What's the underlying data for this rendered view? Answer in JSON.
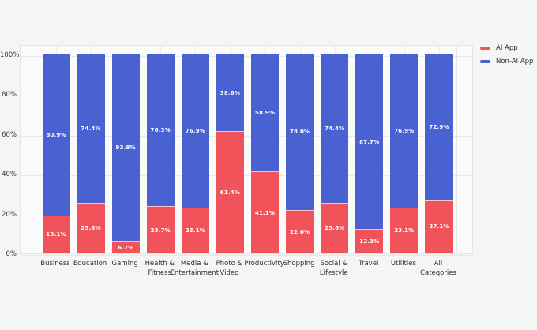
{
  "legend": {
    "items": [
      {
        "label": "AI App",
        "color": "#F0535A"
      },
      {
        "label": "Non-AI App",
        "color": "#4A61D1"
      }
    ]
  },
  "chart_data": {
    "type": "bar",
    "stacked": true,
    "orientation": "vertical",
    "title": "",
    "xlabel": "",
    "ylabel": "",
    "ylim": [
      0,
      100
    ],
    "grid": true,
    "legend_position": "top-right",
    "categories": [
      "Business",
      "Education",
      "Gaming",
      "Health &\nFitness",
      "Media &\nEntertainment",
      "Photo &\nVideo",
      "Productivity",
      "Shopping",
      "Social &\nLifestyle",
      "Travel",
      "Utilities",
      "All\nCategories"
    ],
    "series": [
      {
        "name": "AI App",
        "color": "#F0535A",
        "values": [
          19.1,
          25.6,
          6.2,
          23.7,
          23.1,
          61.4,
          41.1,
          22.0,
          25.6,
          12.3,
          23.1,
          27.1
        ],
        "labels": [
          "19.1%",
          "25.6%",
          "6.2%",
          "23.7%",
          "23.1%",
          "61.4%",
          "41.1%",
          "22.0%",
          "25.6%",
          "12.3%",
          "23.1%",
          "27.1%"
        ]
      },
      {
        "name": "Non-AI App",
        "color": "#4A61D1",
        "values": [
          80.9,
          74.4,
          93.8,
          76.3,
          76.9,
          38.6,
          58.9,
          78.0,
          74.4,
          87.7,
          76.9,
          72.9
        ],
        "labels": [
          "80.9%",
          "74.4%",
          "93.8%",
          "76.3%",
          "76.9%",
          "38.6%",
          "58.9%",
          "78.0%",
          "74.4%",
          "87.7%",
          "76.9%",
          "72.9%"
        ]
      }
    ],
    "y_ticks": [
      "0%",
      "20%",
      "40%",
      "60%",
      "80%",
      "100%"
    ],
    "separator_after_index": 10
  }
}
